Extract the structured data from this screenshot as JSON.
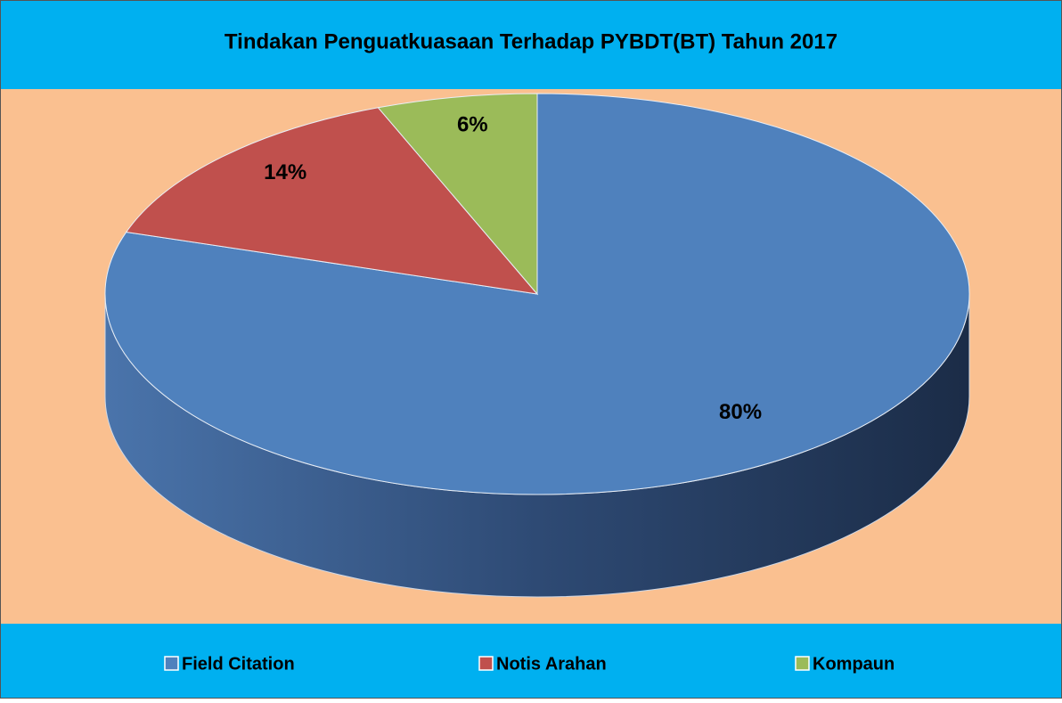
{
  "chart_data": {
    "type": "pie",
    "title": "Tindakan Penguatkuasaan Terhadap PYBDT(BT) Tahun 2017",
    "categories": [
      "Field Citation",
      "Notis Arahan",
      "Kompaun"
    ],
    "values": [
      80,
      14,
      6
    ],
    "value_labels": [
      "80%",
      "14%",
      "6%"
    ],
    "colors": [
      "#4f81bd",
      "#c0504d",
      "#9bbb59"
    ],
    "legend": "bottom"
  }
}
